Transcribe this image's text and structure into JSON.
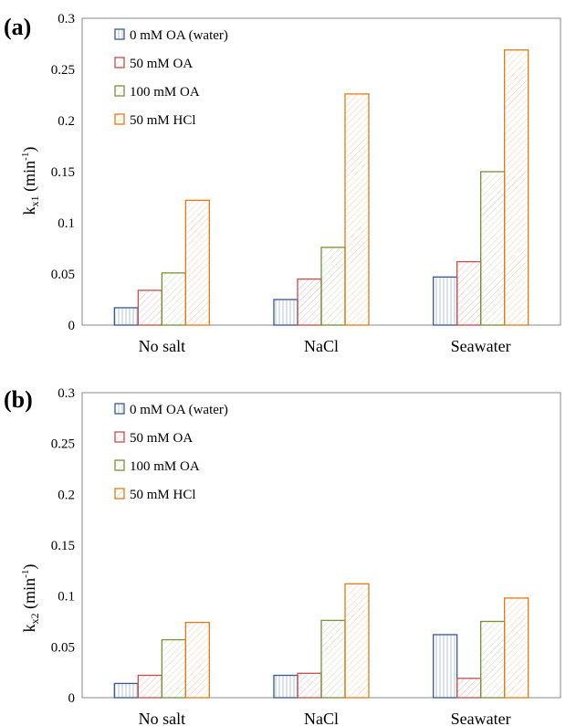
{
  "legend_colors": {
    "0 mM OA (water)": "#3b5a8a",
    "50 mM OA": "#c0504d",
    "100 mM OA": "#77933c",
    "50 mM HCl": "#e07b1a"
  },
  "chart_data": [
    {
      "type": "bar",
      "panel_label": "(a)",
      "ylabel_main": "k",
      "ylabel_sub": "x1",
      "ylabel_unit": "(min",
      "ylabel_sup": "-1",
      "ylabel_close": ")",
      "ylim": [
        0,
        0.3
      ],
      "yticks": [
        "0",
        "0.05",
        "0.1",
        "0.15",
        "0.2",
        "0.25",
        "0.3"
      ],
      "categories": [
        "No salt",
        "NaCl",
        "Seawater"
      ],
      "legend_position": "top-left",
      "grid": false,
      "series": [
        {
          "name": "0 mM OA (water)",
          "values": [
            0.017,
            0.025,
            0.047
          ]
        },
        {
          "name": "50 mM OA",
          "values": [
            0.034,
            0.045,
            0.062
          ]
        },
        {
          "name": "100 mM OA",
          "values": [
            0.051,
            0.076,
            0.15
          ]
        },
        {
          "name": "50 mM HCl",
          "values": [
            0.122,
            0.226,
            0.269
          ]
        }
      ]
    },
    {
      "type": "bar",
      "panel_label": "(b)",
      "ylabel_main": "k",
      "ylabel_sub": "x2",
      "ylabel_unit": "(min",
      "ylabel_sup": "-1",
      "ylabel_close": ")",
      "ylim": [
        0,
        0.3
      ],
      "yticks": [
        "0",
        "0.05",
        "0.1",
        "0.15",
        "0.2",
        "0.25",
        "0.3"
      ],
      "categories": [
        "No salt",
        "NaCl",
        "Seawater"
      ],
      "legend_position": "top-left",
      "grid": false,
      "series": [
        {
          "name": "0 mM OA (water)",
          "values": [
            0.014,
            0.022,
            0.062
          ]
        },
        {
          "name": "50 mM OA",
          "values": [
            0.022,
            0.024,
            0.019
          ]
        },
        {
          "name": "100 mM OA",
          "values": [
            0.057,
            0.076,
            0.075
          ]
        },
        {
          "name": "50 mM HCl",
          "values": [
            0.074,
            0.112,
            0.098
          ]
        }
      ]
    }
  ]
}
